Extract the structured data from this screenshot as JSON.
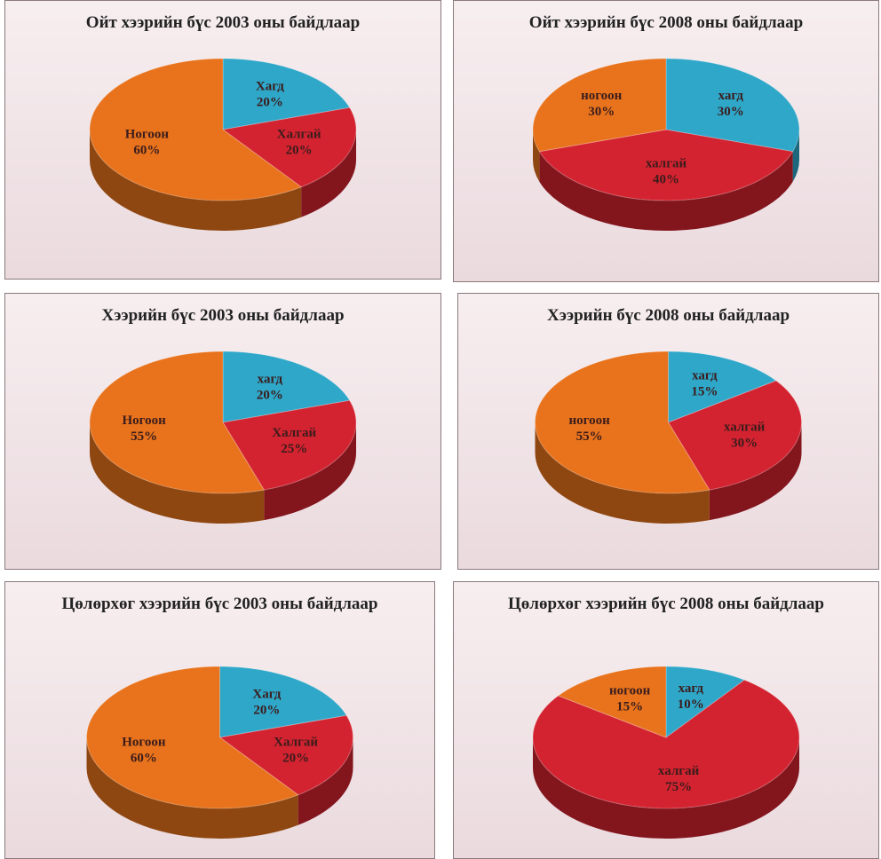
{
  "chart_data": [
    {
      "type": "pie",
      "title": "Ойт хээрийн бүс 2003 оны байдлаар",
      "categories": [
        "Хагд",
        "Халгай",
        "Ногоон"
      ],
      "values": [
        20,
        20,
        60
      ],
      "value_labels": [
        "20%",
        "20%",
        "60%"
      ],
      "colors": [
        "#2ea7c9",
        "#d42330",
        "#e8731c"
      ]
    },
    {
      "type": "pie",
      "title": "Ойт хээрийн бүс 2008 оны байдлаар",
      "categories": [
        "хагд",
        "халгай",
        "ногоон"
      ],
      "values": [
        30,
        40,
        30
      ],
      "value_labels": [
        "30%",
        "40%",
        "30%"
      ],
      "colors": [
        "#2ea7c9",
        "#d42330",
        "#e8731c"
      ]
    },
    {
      "type": "pie",
      "title": "Хээрийн бүс 2003 оны байдлаар",
      "categories": [
        "хагд",
        "Халгай",
        "Ногоон"
      ],
      "values": [
        20,
        25,
        55
      ],
      "value_labels": [
        "20%",
        "25%",
        "55%"
      ],
      "colors": [
        "#2ea7c9",
        "#d42330",
        "#e8731c"
      ]
    },
    {
      "type": "pie",
      "title": "Хээрийн бүс 2008 оны байдлаар",
      "categories": [
        "хагд",
        "халгай",
        "ногоон"
      ],
      "values": [
        15,
        30,
        55
      ],
      "value_labels": [
        "15%",
        "30%",
        "55%"
      ],
      "colors": [
        "#2ea7c9",
        "#d42330",
        "#e8731c"
      ]
    },
    {
      "type": "pie",
      "title": "Цөлөрхөг хээрийн бүс 2003 оны байдлаар",
      "categories": [
        "Хагд",
        "Халгай",
        "Ногоон"
      ],
      "values": [
        20,
        20,
        60
      ],
      "value_labels": [
        "20%",
        "20%",
        "60%"
      ],
      "colors": [
        "#2ea7c9",
        "#d42330",
        "#e8731c"
      ]
    },
    {
      "type": "pie",
      "title": "Цөлөрхөг хээрийн бүс 2008 оны байдлаар",
      "categories": [
        "хагд",
        "халгай",
        "ногоон"
      ],
      "values": [
        10,
        75,
        15
      ],
      "value_labels": [
        "10%",
        "75%",
        "15%"
      ],
      "colors": [
        "#2ea7c9",
        "#d42330",
        "#e8731c"
      ]
    }
  ]
}
